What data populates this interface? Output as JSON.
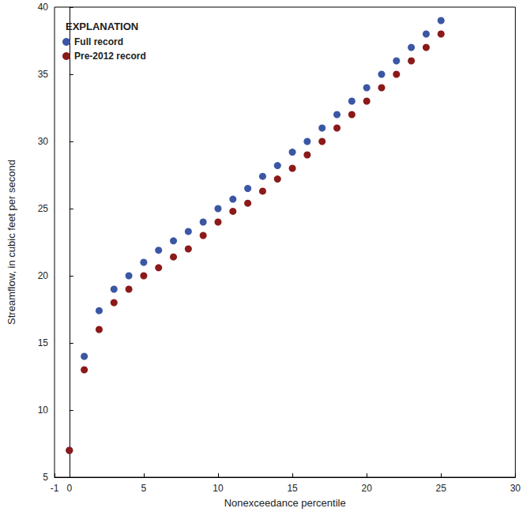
{
  "chart_data": {
    "type": "scatter",
    "legend_title": "EXPLANATION",
    "x_label": "Nonexceedance percentile",
    "y_label": "Streamflow, in cubic feet per second",
    "x": [
      0,
      1,
      2,
      3,
      4,
      5,
      6,
      7,
      8,
      9,
      10,
      11,
      12,
      13,
      14,
      15,
      16,
      17,
      18,
      19,
      20,
      21,
      22,
      23,
      24,
      25
    ],
    "series": [
      {
        "name": "Full record",
        "color": "#3b57a4",
        "marker": "circle",
        "values": [
          7,
          14,
          17.4,
          19,
          20,
          21,
          21.9,
          22.6,
          23.3,
          24,
          25,
          25.7,
          26.5,
          27.4,
          28.2,
          29.2,
          30,
          31,
          32,
          33,
          34,
          35,
          36,
          37,
          38,
          39
        ]
      },
      {
        "name": "Pre-2012 record",
        "color": "#8b1a1a",
        "marker": "circle",
        "values": [
          7,
          13,
          16,
          18,
          19,
          20,
          20.6,
          21.4,
          22,
          23,
          24,
          24.8,
          25.4,
          26.3,
          27.2,
          28,
          29,
          30,
          31,
          32,
          33,
          34,
          35,
          36,
          37,
          38
        ]
      }
    ],
    "xlim": [
      -1,
      30
    ],
    "xticks": [
      -1,
      0,
      5,
      10,
      15,
      20,
      25,
      30
    ],
    "ylim": [
      5,
      40
    ],
    "yticks": [
      5,
      10,
      15,
      20,
      25,
      30,
      35,
      40
    ],
    "grid": false,
    "legend": "top-left"
  }
}
